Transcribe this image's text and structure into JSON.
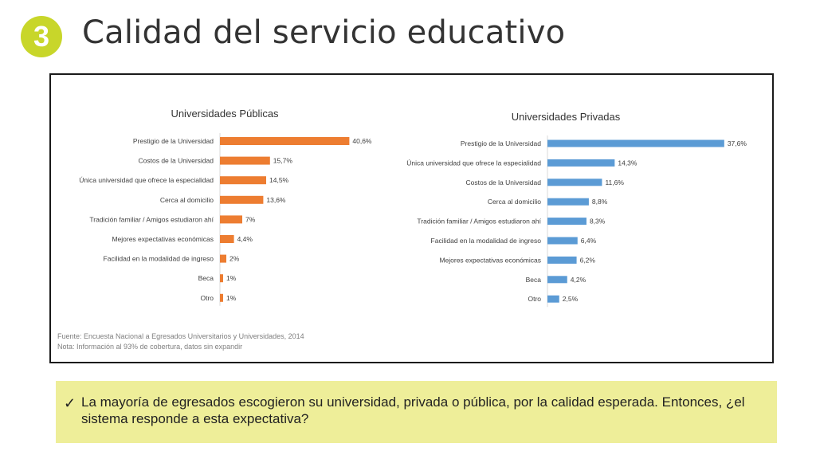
{
  "slide": {
    "number": "3",
    "title": "Calidad del servicio educativo"
  },
  "colors": {
    "badge": "#c8d62a",
    "public_bar": "#ed7d31",
    "private_bar": "#5b9bd5",
    "note_background": "#eeee99"
  },
  "chart_data": [
    {
      "type": "bar",
      "orientation": "horizontal",
      "title": "Universidades Públicas",
      "categories": [
        "Prestigio de la Universidad",
        "Costos de la Universidad",
        "Única universidad que ofrece la especialidad",
        "Cerca al domicilio",
        "Tradición familiar / Amigos estudiaron ahí",
        "Mejores expectativas económicas",
        "Facilidad en la modalidad de ingreso",
        "Beca",
        "Otro"
      ],
      "values": [
        40.6,
        15.7,
        14.5,
        13.6,
        7,
        4.4,
        2,
        1,
        1
      ],
      "data_labels": [
        "40,6%",
        "15,7%",
        "14,5%",
        "13,6%",
        "7%",
        "4,4%",
        "2%",
        "1%",
        "1%"
      ],
      "color": "#ed7d31",
      "xlim": [
        0,
        45
      ],
      "grid": false
    },
    {
      "type": "bar",
      "orientation": "horizontal",
      "title": "Universidades Privadas",
      "categories": [
        "Prestigio de la Universidad",
        "Única universidad que ofrece la especialidad",
        "Costos de la Universidad",
        "Cerca al domicilio",
        "Tradición familiar / Amigos estudiaron ahí",
        "Facilidad en la modalidad de ingreso",
        "Mejores expectativas económicas",
        "Beca",
        "Otro"
      ],
      "values": [
        37.6,
        14.3,
        11.6,
        8.8,
        8.3,
        6.4,
        6.2,
        4.2,
        2.5
      ],
      "data_labels": [
        "37,6%",
        "14,3%",
        "11,6%",
        "8,8%",
        "8,3%",
        "6,4%",
        "6,2%",
        "4,2%",
        "2,5%"
      ],
      "color": "#5b9bd5",
      "xlim": [
        0,
        40
      ],
      "grid": false
    }
  ],
  "footnotes": {
    "source": "Fuente: Encuesta Nacional a Egresados Universitarios y Universidades, 2014",
    "note": "Nota: Información al 93% de cobertura, datos sin expandir"
  },
  "conclusion": {
    "check_icon": "check-icon",
    "text": "La mayoría de egresados escogieron su universidad, privada o pública, por la calidad esperada. Entonces, ¿el sistema responde a esta expectativa?"
  }
}
